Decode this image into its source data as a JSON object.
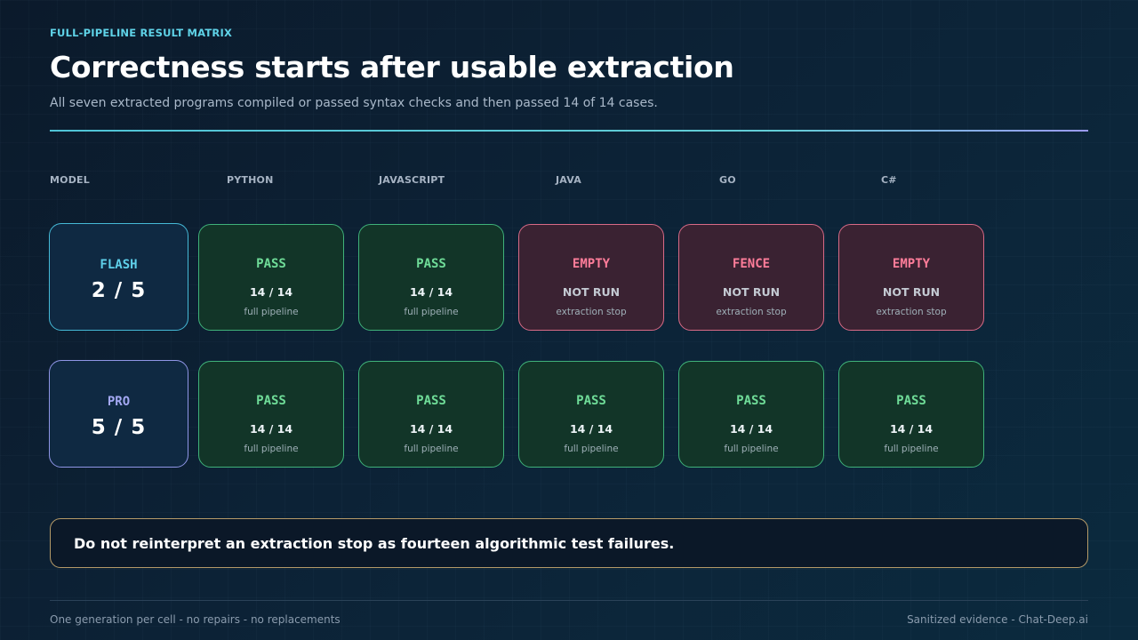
{
  "header": {
    "eyebrow": "FULL-PIPELINE RESULT MATRIX",
    "title": "Correctness starts after usable extraction",
    "subtitle": "All seven extracted programs compiled or passed syntax checks and then passed 14 of 14 cases."
  },
  "columns": {
    "model": "MODEL",
    "python": "PYTHON",
    "javascript": "JAVASCRIPT",
    "java": "JAVA",
    "go": "GO",
    "csharp": "C#"
  },
  "rows": [
    {
      "model": "FLASH",
      "score": "2 / 5",
      "cells": [
        {
          "status": "PASS",
          "score": "14 / 14",
          "note": "full pipeline"
        },
        {
          "status": "PASS",
          "score": "14 / 14",
          "note": "full pipeline"
        },
        {
          "status": "EMPTY",
          "score": "NOT RUN",
          "note": "extraction stop"
        },
        {
          "status": "FENCE",
          "score": "NOT RUN",
          "note": "extraction stop"
        },
        {
          "status": "EMPTY",
          "score": "NOT RUN",
          "note": "extraction stop"
        }
      ]
    },
    {
      "model": "PRO",
      "score": "5 / 5",
      "cells": [
        {
          "status": "PASS",
          "score": "14 / 14",
          "note": "full pipeline"
        },
        {
          "status": "PASS",
          "score": "14 / 14",
          "note": "full pipeline"
        },
        {
          "status": "PASS",
          "score": "14 / 14",
          "note": "full pipeline"
        },
        {
          "status": "PASS",
          "score": "14 / 14",
          "note": "full pipeline"
        },
        {
          "status": "PASS",
          "score": "14 / 14",
          "note": "full pipeline"
        }
      ]
    }
  ],
  "callout": "Do not reinterpret an extraction stop as fourteen algorithmic test failures.",
  "footer": {
    "left": "One generation per cell - no repairs - no replacements",
    "right": "Sanitized evidence - Chat-Deep.ai"
  },
  "colors": {
    "accent": "#5fd3e8",
    "pass_border": "#3fb27a",
    "pass_text": "#6fdc98",
    "fail_border": "#d96a86",
    "fail_text": "#ff7d9a",
    "pro_accent": "#a3a8f2",
    "callout_border": "#b59a68"
  }
}
